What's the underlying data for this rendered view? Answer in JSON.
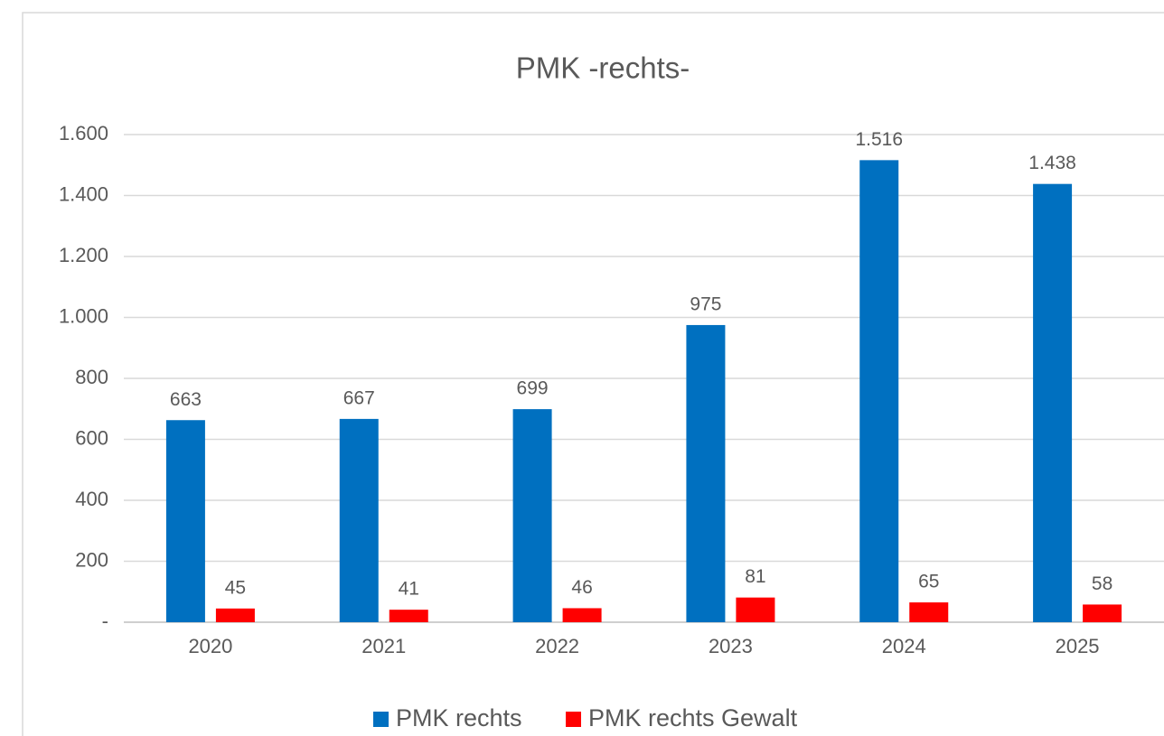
{
  "chart_data": {
    "type": "bar",
    "title": "PMK -rechts-",
    "categories": [
      "2020",
      "2021",
      "2022",
      "2023",
      "2024",
      "2025"
    ],
    "series": [
      {
        "name": "PMK rechts",
        "color": "#0070c0",
        "values": [
          663,
          667,
          699,
          975,
          1516,
          1438
        ],
        "value_labels": [
          "663",
          "667",
          "699",
          "975",
          "1.516",
          "1.438"
        ]
      },
      {
        "name": "PMK rechts Gewalt",
        "color": "#ff0000",
        "values": [
          45,
          41,
          46,
          81,
          65,
          58
        ]
      }
    ],
    "ylim": [
      0,
      1600
    ],
    "yticks": [
      {
        "value": 0,
        "label": "-"
      },
      200,
      400,
      600,
      800,
      {
        "value": 1000,
        "label": "1.000"
      },
      {
        "value": 1200,
        "label": "1.200"
      },
      {
        "value": 1400,
        "label": "1.400"
      },
      {
        "value": 1600,
        "label": "1.600"
      }
    ],
    "grid": true,
    "legend": "bottom"
  }
}
